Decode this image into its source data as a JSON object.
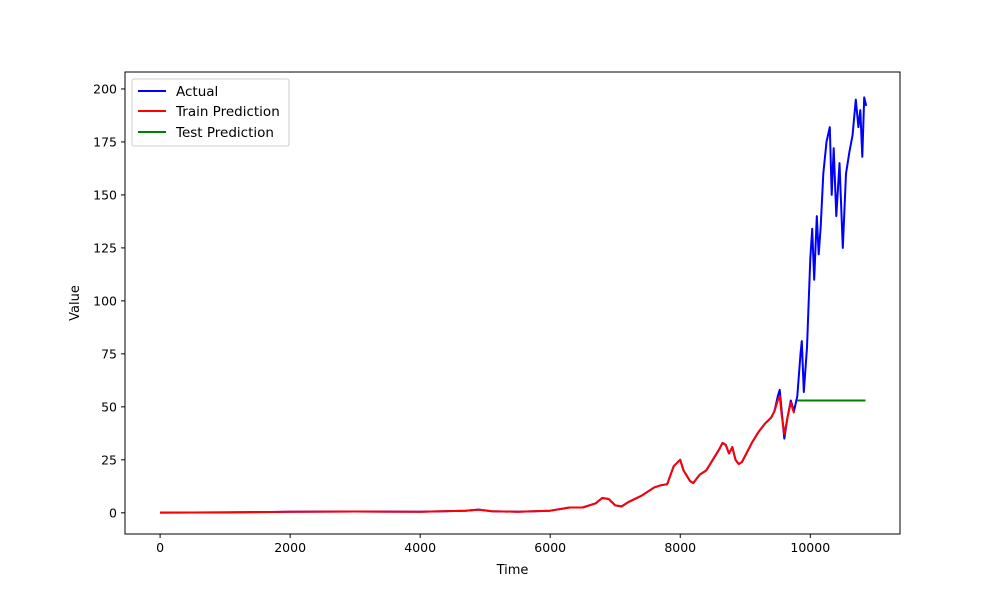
{
  "chart_data": {
    "type": "line",
    "title": "",
    "xlabel": "Time",
    "ylabel": "Value",
    "xlim": [
      -540,
      11380
    ],
    "ylim": [
      -10,
      208
    ],
    "xticks": [
      0,
      2000,
      4000,
      6000,
      8000,
      10000
    ],
    "yticks": [
      0,
      25,
      50,
      75,
      100,
      125,
      150,
      175,
      200
    ],
    "grid": false,
    "legend_position": "top-left",
    "series": [
      {
        "name": "Actual",
        "color": "#0000ff",
        "x": [
          0,
          1000,
          1700,
          2000,
          3000,
          4000,
          4700,
          4900,
          5100,
          5500,
          6000,
          6300,
          6500,
          6700,
          6800,
          6900,
          7000,
          7100,
          7200,
          7400,
          7600,
          7700,
          7800,
          7900,
          8000,
          8050,
          8150,
          8200,
          8300,
          8400,
          8500,
          8600,
          8650,
          8700,
          8750,
          8800,
          8850,
          8900,
          8950,
          9000,
          9100,
          9200,
          9300,
          9400,
          9450,
          9500,
          9530,
          9560,
          9600,
          9650,
          9700,
          9750,
          9800,
          9850,
          9870,
          9900,
          9950,
          10000,
          10030,
          10060,
          10100,
          10130,
          10160,
          10200,
          10250,
          10300,
          10330,
          10360,
          10400,
          10450,
          10500,
          10550,
          10600,
          10650,
          10700,
          10740,
          10770,
          10800,
          10830,
          10860
        ],
        "values": [
          0.1,
          0.2,
          0.4,
          0.5,
          0.6,
          0.5,
          1.0,
          1.5,
          0.7,
          0.5,
          1.0,
          2.5,
          2.5,
          4.5,
          7.0,
          6.5,
          3.5,
          3.0,
          5.0,
          8.0,
          12.0,
          13.0,
          13.5,
          22.0,
          25.0,
          20.0,
          15.0,
          14.0,
          18.0,
          20.0,
          25.0,
          30.0,
          33.0,
          32.0,
          28.0,
          31.0,
          25.0,
          23.0,
          24.0,
          27.0,
          33.0,
          38.0,
          42.0,
          45.0,
          48.0,
          55.0,
          58.0,
          48.0,
          35.0,
          45.0,
          53.0,
          48.0,
          55.0,
          75.0,
          81.0,
          57.0,
          78.0,
          120.0,
          134.0,
          110.0,
          140.0,
          122.0,
          135.0,
          160.0,
          175.0,
          182.0,
          150.0,
          172.0,
          140.0,
          165.0,
          125.0,
          160.0,
          170.0,
          178.0,
          195.0,
          182.0,
          190.0,
          168.0,
          196.0,
          192.0
        ]
      },
      {
        "name": "Train Prediction",
        "color": "#ff0000",
        "x": [
          0,
          1000,
          1700,
          2000,
          3000,
          4000,
          4700,
          4900,
          5100,
          5500,
          6000,
          6300,
          6500,
          6700,
          6800,
          6900,
          7000,
          7100,
          7200,
          7400,
          7600,
          7700,
          7800,
          7900,
          8000,
          8050,
          8150,
          8200,
          8300,
          8400,
          8500,
          8600,
          8650,
          8700,
          8750,
          8800,
          8850,
          8900,
          8950,
          9000,
          9100,
          9200,
          9300,
          9400,
          9450,
          9500,
          9530,
          9560,
          9600,
          9650,
          9700,
          9750
        ],
        "values": [
          0.1,
          0.2,
          0.4,
          0.5,
          0.6,
          0.5,
          1.0,
          1.5,
          0.7,
          0.5,
          1.0,
          2.5,
          2.5,
          4.5,
          7.0,
          6.5,
          3.5,
          3.0,
          5.0,
          8.0,
          12.0,
          13.0,
          13.5,
          22.0,
          25.0,
          20.0,
          15.0,
          14.0,
          18.0,
          20.0,
          25.0,
          30.0,
          33.0,
          32.0,
          28.0,
          31.0,
          25.0,
          23.0,
          24.0,
          27.0,
          33.0,
          38.0,
          42.0,
          45.0,
          48.0,
          53.0,
          55.0,
          46.0,
          37.0,
          45.0,
          52.0,
          47.0
        ]
      },
      {
        "name": "Test Prediction",
        "color": "#008000",
        "x": [
          9800,
          10850
        ],
        "values": [
          53.0,
          53.0
        ]
      }
    ]
  }
}
